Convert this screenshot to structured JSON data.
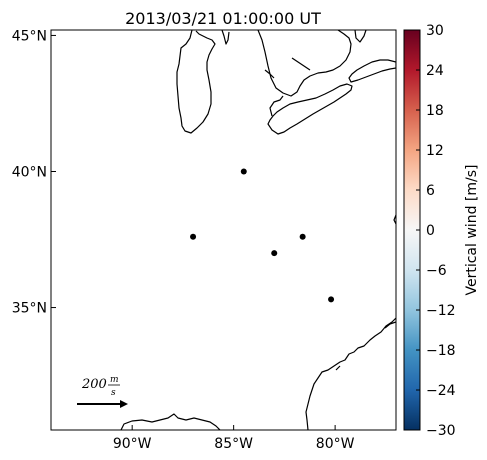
{
  "title": "2013/03/21 01:00:00 UT",
  "map": {
    "lon_range": [
      -94,
      -77
    ],
    "lat_range": [
      30.5,
      45.2
    ],
    "lon_ticks": [
      {
        "value": -90,
        "label": "90°W"
      },
      {
        "value": -85,
        "label": "85°W"
      },
      {
        "value": -80,
        "label": "80°W"
      }
    ],
    "lat_ticks": [
      {
        "value": 45,
        "label": "45°N"
      },
      {
        "value": 40,
        "label": "40°N"
      },
      {
        "value": 35,
        "label": "35°N"
      }
    ],
    "stations": [
      {
        "lon": -84.5,
        "lat": 40.0
      },
      {
        "lon": -87.0,
        "lat": 37.6
      },
      {
        "lon": -83.0,
        "lat": 37.0
      },
      {
        "lon": -81.6,
        "lat": 37.6
      },
      {
        "lon": -80.2,
        "lat": 35.3
      }
    ],
    "scale_arrow": {
      "label": "200 m/s",
      "text_main": "200",
      "text_num": "m",
      "text_den": "s"
    },
    "coastline_color": "#000000",
    "station_color": "#000000"
  },
  "colorbar": {
    "label": "Vertical wind [m/s]",
    "min": -30,
    "max": 30,
    "ticks": [
      30,
      24,
      18,
      12,
      6,
      0,
      -6,
      -12,
      -18,
      -24,
      -30
    ],
    "tick_labels": [
      "30",
      "24",
      "18",
      "12",
      "6",
      "0",
      "−6",
      "−12",
      "−18",
      "−24",
      "−30"
    ],
    "colormap": "RdBu_r",
    "stops": [
      "#67001f",
      "#b2182b",
      "#d6604d",
      "#f4a582",
      "#fddbc7",
      "#f7f7f7",
      "#d1e5f0",
      "#92c5de",
      "#4393c3",
      "#2166ac",
      "#053061"
    ]
  }
}
